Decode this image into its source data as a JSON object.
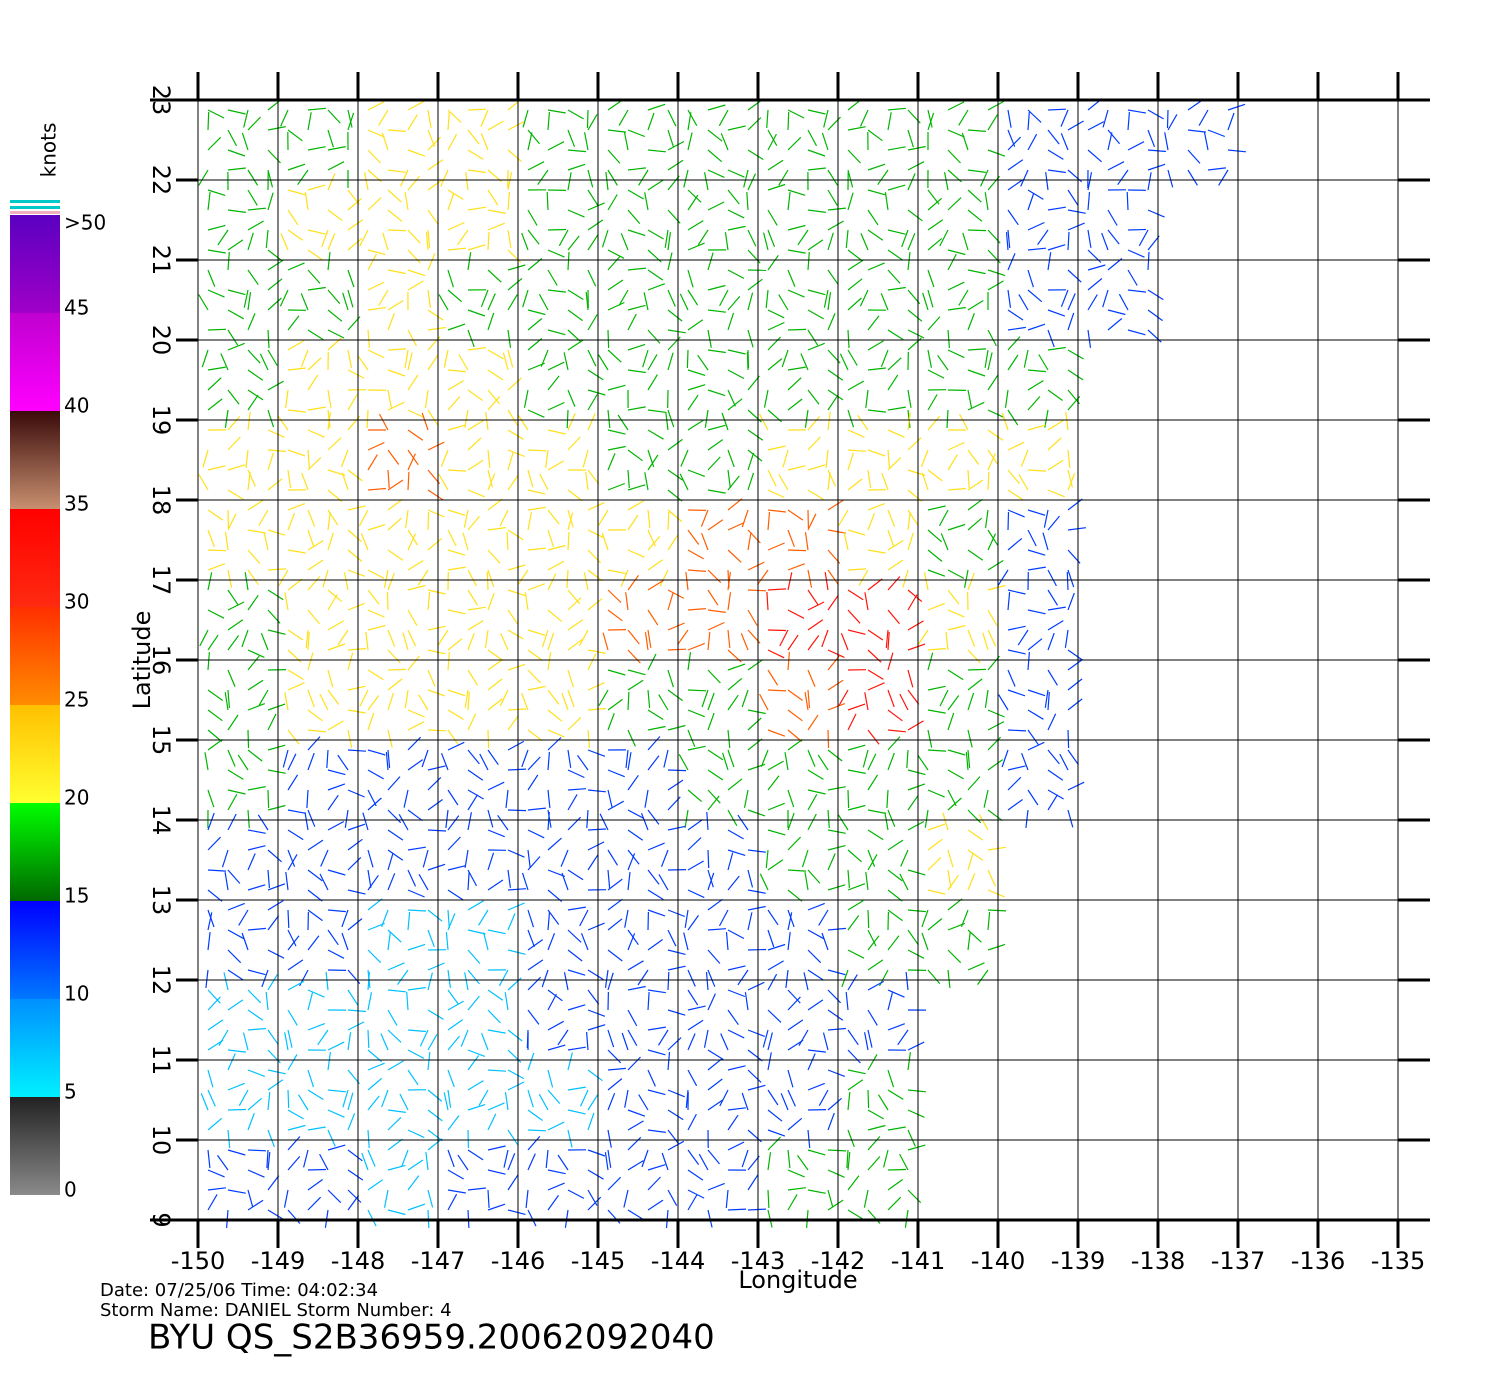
{
  "chart_data": {
    "type": "wind_map",
    "xlabel": "Longitude",
    "ylabel": "Latitude",
    "xlim": [
      -150,
      -135
    ],
    "ylim": [
      9,
      23
    ],
    "xticks": [
      -150,
      -149,
      -148,
      -147,
      -146,
      -145,
      -144,
      -143,
      -142,
      -141,
      -140,
      -139,
      -138,
      -137,
      -136,
      -135
    ],
    "yticks": [
      9,
      10,
      11,
      12,
      13,
      14,
      15,
      16,
      17,
      18,
      19,
      20,
      21,
      22,
      23
    ],
    "grid": true,
    "speed_grid": {
      "lon_centers": [
        -149.5,
        -148.5,
        -147.5,
        -146.5,
        -145.5,
        -144.5,
        -143.5,
        -142.5,
        -141.5,
        -140.5,
        -139.5,
        -138.5,
        -137.5
      ],
      "lat_centers": [
        22.5,
        21.5,
        20.5,
        19.5,
        18.5,
        17.5,
        16.5,
        15.5,
        14.5,
        13.5,
        12.5,
        11.5,
        10.5,
        9.5
      ],
      "values": [
        [
          18,
          17,
          20,
          20,
          17,
          17,
          18,
          17,
          16,
          15,
          13,
          12,
          12
        ],
        [
          17,
          20,
          20,
          20,
          17,
          18,
          18,
          16,
          16,
          15,
          13,
          13,
          null
        ],
        [
          17,
          18,
          20,
          17,
          17,
          17,
          18,
          17,
          16,
          16,
          14,
          13,
          null
        ],
        [
          18,
          20,
          22,
          20,
          18,
          18,
          18,
          17,
          18,
          17,
          16,
          null,
          null
        ],
        [
          20,
          20,
          25,
          21,
          20,
          19,
          18,
          20,
          20,
          20,
          20,
          null,
          null
        ],
        [
          20,
          20,
          20,
          22,
          22,
          24,
          27,
          26,
          20,
          15,
          13,
          null,
          null
        ],
        [
          18,
          20,
          20,
          20,
          22,
          26,
          28,
          30,
          33,
          20,
          12,
          null,
          null
        ],
        [
          18,
          20,
          22,
          20,
          20,
          18,
          18,
          28,
          30,
          18,
          12,
          null,
          null
        ],
        [
          15,
          14,
          13,
          13,
          12,
          13,
          15,
          18,
          18,
          16,
          12,
          null,
          null
        ],
        [
          13,
          12,
          11,
          11,
          12,
          12,
          12,
          15,
          18,
          20,
          null,
          null,
          null
        ],
        [
          12,
          10,
          9,
          9,
          11,
          12,
          13,
          14,
          16,
          18,
          null,
          null,
          null
        ],
        [
          8,
          5,
          8,
          8,
          10,
          12,
          12,
          13,
          12,
          null,
          null,
          null,
          null
        ],
        [
          6,
          5,
          7,
          8,
          9,
          12,
          13,
          12,
          15,
          null,
          null,
          null,
          null
        ],
        [
          10,
          11,
          8,
          10,
          12,
          12,
          12,
          15,
          16,
          null,
          null,
          null,
          null
        ]
      ]
    },
    "colorbar": {
      "label": "knots",
      "lim": [
        0,
        50
      ],
      "ticks": [
        0,
        5,
        10,
        15,
        20,
        25,
        30,
        35,
        40,
        45
      ],
      "top_label": ">50",
      "band_width": 5,
      "band_colors": [
        [
          "#8a8a8a",
          "#222222"
        ],
        [
          "#00f0ff",
          "#0090ff"
        ],
        [
          "#0078ff",
          "#0000ff"
        ],
        [
          "#006800",
          "#00ff00"
        ],
        [
          "#ffff30",
          "#ffc000"
        ],
        [
          "#ff8c00",
          "#ff3000"
        ],
        [
          "#ff2a10",
          "#ff0000"
        ],
        [
          "#c89070",
          "#3a0a0a"
        ],
        [
          "#ff00ff",
          "#c000d0"
        ],
        [
          "#a000c8",
          "#5a00c0"
        ]
      ]
    },
    "info": {
      "date_line": "Date:  07/25/06   Time:  04:02:34",
      "storm_line": "Storm  Name:  DANIEL    Storm  Number:  4",
      "file": "BYU  QS_S2B36959.20062092040"
    }
  }
}
